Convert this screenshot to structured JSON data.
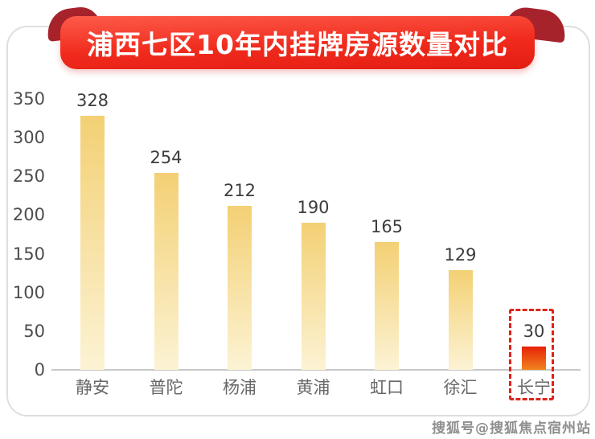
{
  "banner": {
    "title": "浦西七区10年内挂牌房源数量对比"
  },
  "watermark": {
    "text": "搜狐号@搜狐焦点宿州站"
  },
  "chart_data": {
    "type": "bar",
    "title": "浦西七区10年内挂牌房源数量对比",
    "categories": [
      "静安",
      "普陀",
      "杨浦",
      "黄浦",
      "虹口",
      "徐汇",
      "长宁"
    ],
    "values": [
      328,
      254,
      212,
      190,
      165,
      129,
      30
    ],
    "value_labels": [
      "328",
      "254",
      "212",
      "190",
      "165",
      "129",
      "30"
    ],
    "y_ticks": [
      0,
      50,
      100,
      150,
      200,
      250,
      300,
      350
    ],
    "ylim": [
      0,
      350
    ],
    "xlabel": "",
    "ylabel": "",
    "grid": false,
    "legend": "none",
    "highlight_index": 6,
    "colors": {
      "bar_top": "#f3d074",
      "bar_bottom": "#fcf3d4",
      "highlight_bar_top": "#e72106",
      "highlight_bar_bottom": "#f1851f",
      "highlight_box": "#df241a",
      "banner_red": "#ee2418",
      "banner_fold": "#a7232c",
      "axis_line": "#c9c9c9"
    }
  }
}
